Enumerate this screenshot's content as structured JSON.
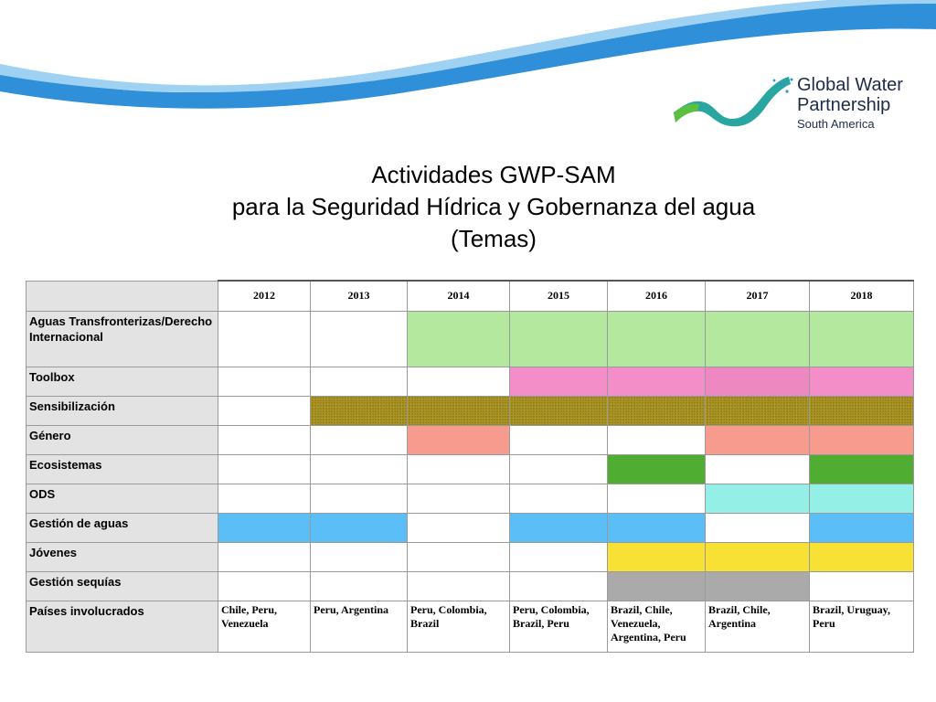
{
  "logo": {
    "line1": "Global Water",
    "line2": "Partnership",
    "line3": "South America"
  },
  "title": {
    "line1": "Actividades GWP-SAM",
    "line2": "para la Seguridad Hídrica y Gobernanza del agua",
    "line3": "(Temas)"
  },
  "years": [
    "2012",
    "2013",
    "2014",
    "2015",
    "2016",
    "2017",
    "2018"
  ],
  "rows": [
    {
      "label": "Aguas Transfronterizas/Derecho Internacional",
      "cells": [
        "",
        "",
        "green",
        "green",
        "green",
        "green",
        "green"
      ]
    },
    {
      "label": "Toolbox",
      "cells": [
        "",
        "",
        "",
        "pink",
        "pink",
        "pink2",
        "pink"
      ]
    },
    {
      "label": "Sensibilización",
      "cells": [
        "",
        "olive",
        "olive",
        "olive",
        "olive",
        "olive",
        "olive"
      ]
    },
    {
      "label": "Género",
      "cells": [
        "",
        "",
        "salmon",
        "",
        "",
        "salmon",
        "salmon"
      ]
    },
    {
      "label": "Ecosistemas",
      "cells": [
        "",
        "",
        "",
        "",
        "dgreen",
        "",
        "dgreen"
      ]
    },
    {
      "label": "ODS",
      "cells": [
        "",
        "",
        "",
        "",
        "",
        "cyan",
        "cyan"
      ]
    },
    {
      "label": "Gestión de aguas",
      "cells": [
        "blue",
        "blue",
        "",
        "blue",
        "blue",
        "",
        "blue"
      ]
    },
    {
      "label": "Jóvenes",
      "cells": [
        "",
        "",
        "",
        "",
        "yellow",
        "yellow",
        "yellow"
      ]
    },
    {
      "label": "Gestión sequías",
      "cells": [
        "",
        "",
        "",
        "",
        "gray",
        "gray",
        ""
      ]
    }
  ],
  "countries_row": {
    "label": "Países involucrados",
    "values": [
      "Chile, Peru, Venezuela",
      "Peru, Argentina",
      "Peru, Colombia, Brazil",
      "Peru, Colombia, Brazil, Peru",
      "Brazil, Chile, Venezuela, Argentina, Peru",
      "Brazil, Chile, Argentina",
      "Brazil, Uruguay, Peru"
    ]
  },
  "colors": {
    "green": "#b3e89e",
    "pink": "#f48ec8",
    "pink2": "#ee88c0",
    "olive": "#a99323",
    "salmon": "#f79b8f",
    "dgreen": "#4fae32",
    "cyan": "#94f0e6",
    "blue": "#5cbef7",
    "yellow": "#f8e135",
    "gray": "#aaaaaa",
    "wave_blue": "#2f8fd8",
    "logo_navy": "#1d2a4a"
  }
}
